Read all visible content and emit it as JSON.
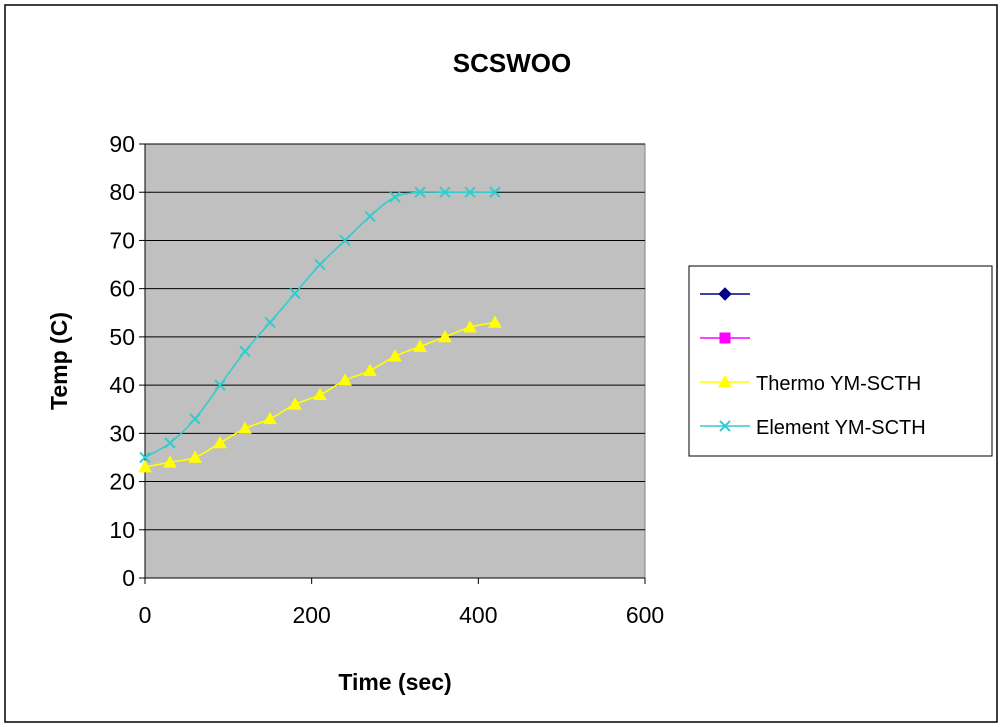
{
  "chart_data": {
    "type": "line",
    "title": "SCSWOO",
    "xlabel": "Time (sec)",
    "ylabel": "Temp (C)",
    "xlim": [
      0,
      600
    ],
    "ylim": [
      0,
      90
    ],
    "xticks": [
      0,
      200,
      400,
      600
    ],
    "yticks": [
      0,
      10,
      20,
      30,
      40,
      50,
      60,
      70,
      80,
      90
    ],
    "plot_background": "#C0C0C0",
    "grid": "horizontal",
    "legend_position": "right",
    "series": [
      {
        "name": "",
        "color": "#000080",
        "marker": "diamond",
        "x": [],
        "y": []
      },
      {
        "name": "",
        "color": "#FF00FF",
        "marker": "square",
        "x": [],
        "y": []
      },
      {
        "name": "Thermo YM-SCTH",
        "color": "#FFFF00",
        "marker": "triangle",
        "x": [
          0,
          30,
          60,
          90,
          120,
          150,
          180,
          210,
          240,
          270,
          300,
          330,
          360,
          390,
          420
        ],
        "y": [
          23,
          24,
          25,
          28,
          31,
          33,
          36,
          38,
          41,
          43,
          46,
          48,
          50,
          52,
          53
        ]
      },
      {
        "name": "Element YM-SCTH",
        "color": "#33CCCC",
        "marker": "x",
        "x": [
          0,
          30,
          60,
          90,
          120,
          150,
          180,
          210,
          240,
          270,
          300,
          330,
          360,
          390,
          420
        ],
        "y": [
          25,
          28,
          33,
          40,
          47,
          53,
          59,
          65,
          70,
          75,
          79,
          80,
          80,
          80,
          80
        ]
      }
    ]
  }
}
